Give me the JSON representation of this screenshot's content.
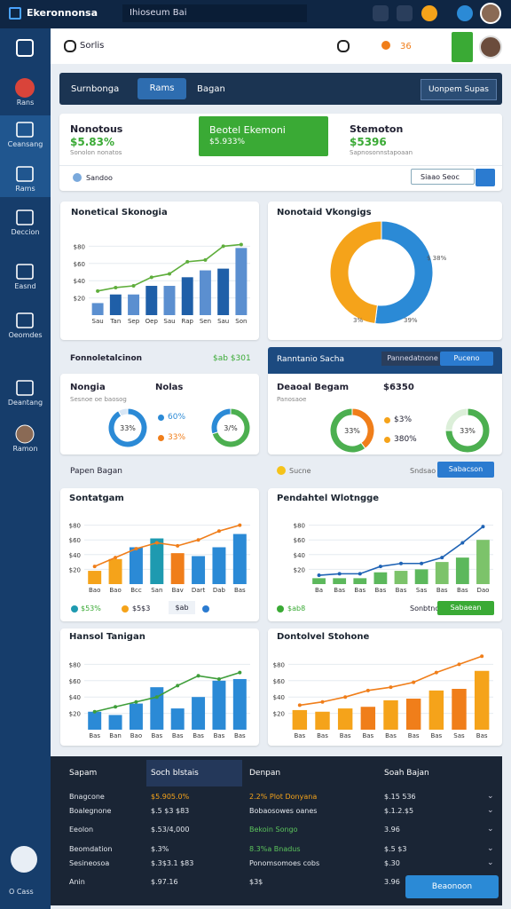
{
  "topbar": {
    "brand": "Ekeronnonsa",
    "search": "Ihioseum Bai"
  },
  "sidebar": [
    "Rans",
    "Ceansang",
    "Rams",
    "Deccion",
    "Easnd",
    "Oeomdes",
    "Deantang",
    "Ramon",
    "O Cass"
  ],
  "header": {
    "search": "Sorlis",
    "badge": "36"
  },
  "tabs": [
    "Surnbonga",
    "Rams",
    "Bagan"
  ],
  "tab_button": "Uonpem Supas",
  "summary": {
    "left_title": "Nonotous",
    "left_value": "$5.83%",
    "left_sub": "Sonolon nonatos",
    "center_title": "Beotel Ekemoni",
    "center_value": "$5.933%",
    "right_title": "Stemoton",
    "right_value": "$5396",
    "right_sub": "Sapnosonnstapoaan",
    "radio": "Sandoo",
    "input": "Siaao Seoc"
  },
  "section": {
    "left": "Fonnoletalcinon",
    "left_value": "$ab $301",
    "right": "Ranntanio Sacha",
    "right_pill": "Pannedatnone",
    "right_button": "Puceno"
  },
  "donut_cards": [
    {
      "title": "Nongia",
      "value": "Nolas",
      "sub": "Sesnoe oe baosog",
      "legend": [
        "60%",
        "33%"
      ]
    },
    {
      "title": "Deaoal Begam",
      "value": "$6350",
      "sub": "Panosaoe",
      "legend": [
        "$3%",
        "380%"
      ]
    }
  ],
  "row_strip": {
    "left": "Papen Bagan",
    "middle": "Sucne",
    "right": "Sndsao",
    "button": "Sabacson"
  },
  "legend_rows": [
    {
      "left": "$53%",
      "mid": "$5$3",
      "box": "$ab"
    },
    {
      "left": "$ab8",
      "right": "Sonbtnc",
      "button": "Sabaean"
    }
  ],
  "chart_data": [
    {
      "type": "bar",
      "title": "Nonetical Skonogia",
      "categories": [
        "Sau",
        "Tan",
        "Sep",
        "Oep",
        "Sau",
        "Rap",
        "Sen",
        "Sau",
        "Son"
      ],
      "ylim": [
        0,
        100
      ],
      "yticks": [
        {
          "value": 20,
          "label": "$20"
        },
        {
          "value": 40,
          "label": "$40"
        },
        {
          "value": 60,
          "label": "$60"
        },
        {
          "value": 80,
          "label": "$80"
        }
      ],
      "grid": true,
      "series": [
        {
          "style": "bar",
          "colors": [
            "#5b8fd0",
            "#1f5fa8",
            "#5b8fd0",
            "#1f5fa8",
            "#5b8fd0",
            "#1f5fa8",
            "#5b8fd0",
            "#1f5fa8",
            "#5b8fd0"
          ],
          "values": [
            14,
            24,
            24,
            34,
            34,
            44,
            52,
            54,
            78
          ]
        },
        {
          "style": "line",
          "color": "#5fae3c",
          "values": [
            28,
            32,
            34,
            44,
            48,
            62,
            64,
            80,
            82
          ]
        }
      ]
    },
    {
      "type": "pie",
      "title": "Nonotaid Vkongigs",
      "donut": true,
      "values": [
        52,
        48
      ],
      "colors": [
        "#2b8ad6",
        "#f5a31a"
      ],
      "annotations": [
        "$ 38%",
        "39%",
        "3%"
      ]
    },
    {
      "type": "pie",
      "donut": true,
      "values": [
        92,
        8
      ],
      "colors": [
        "#2b8ad6",
        "#d7e6f5"
      ],
      "center_label": "33%"
    },
    {
      "type": "pie",
      "donut": true,
      "values": [
        70,
        30
      ],
      "colors": [
        "#4caf50",
        "#2b8ad6"
      ],
      "center_label": "3/%"
    },
    {
      "type": "pie",
      "donut": true,
      "values": [
        40,
        60
      ],
      "colors": [
        "#f07e1a",
        "#4caf50"
      ],
      "center_label": "33%"
    },
    {
      "type": "pie",
      "donut": true,
      "values": [
        75,
        25
      ],
      "colors": [
        "#4caf50",
        "#dcefd9"
      ],
      "center_label": "33%"
    },
    {
      "type": "bar",
      "title": "Sontatgam",
      "categories": [
        "Bao",
        "Bao",
        "Bcc",
        "San",
        "Bav",
        "Dart",
        "Dab",
        "Bas"
      ],
      "ylim": [
        0,
        100
      ],
      "yticks": [
        {
          "value": 20,
          "label": "$20"
        },
        {
          "value": 40,
          "label": "$40"
        },
        {
          "value": 60,
          "label": "$60"
        },
        {
          "value": 80,
          "label": "$80"
        }
      ],
      "grid": true,
      "series": [
        {
          "style": "bar",
          "colors": [
            "#f5a31a",
            "#f5a31a",
            "#2b8ad6",
            "#1e9ab0",
            "#f07e1a",
            "#2b8ad6",
            "#2b8ad6",
            "#2b8ad6"
          ],
          "values": [
            18,
            34,
            50,
            62,
            42,
            38,
            50,
            68
          ]
        },
        {
          "style": "line",
          "color": "#f07e1a",
          "values": [
            24,
            36,
            48,
            56,
            52,
            60,
            72,
            80
          ]
        }
      ]
    },
    {
      "type": "bar",
      "title": "Pendahtel Wlotngge",
      "categories": [
        "Ba",
        "Bas",
        "Bas",
        "Bas",
        "Bas",
        "Sas",
        "Bas",
        "Bas",
        "Dao"
      ],
      "ylim": [
        0,
        100
      ],
      "yticks": [
        {
          "value": 20,
          "label": "$20"
        },
        {
          "value": 40,
          "label": "$40"
        },
        {
          "value": 60,
          "label": "$60"
        },
        {
          "value": 80,
          "label": "$80"
        }
      ],
      "grid": true,
      "series": [
        {
          "style": "bar",
          "colors": [
            "#5cb85c",
            "#5cb85c",
            "#5cb85c",
            "#5cb85c",
            "#7cc36a",
            "#5cb85c",
            "#7cc36a",
            "#5cb85c",
            "#7cc36a"
          ],
          "values": [
            8,
            8,
            8,
            16,
            18,
            20,
            30,
            36,
            60
          ]
        },
        {
          "style": "line",
          "color": "#1f63b5",
          "values": [
            12,
            14,
            14,
            24,
            28,
            28,
            36,
            56,
            78
          ]
        }
      ]
    },
    {
      "type": "bar",
      "title": "Hansol Tanigan",
      "categories": [
        "Bas",
        "Ban",
        "Bao",
        "Bas",
        "Bas",
        "Bas",
        "Bas",
        "Bas"
      ],
      "ylim": [
        0,
        100
      ],
      "yticks": [
        {
          "value": 20,
          "label": "$20"
        },
        {
          "value": 40,
          "label": "$40"
        },
        {
          "value": 60,
          "label": "$60"
        },
        {
          "value": 80,
          "label": "$80"
        }
      ],
      "grid": true,
      "series": [
        {
          "style": "bar",
          "colors": [
            "#2b8ad6",
            "#2b8ad6",
            "#2b8ad6",
            "#2b8ad6",
            "#2b8ad6",
            "#2b8ad6",
            "#2b8ad6",
            "#2b8ad6"
          ],
          "values": [
            22,
            18,
            32,
            52,
            26,
            40,
            60,
            62
          ]
        },
        {
          "style": "line",
          "color": "#3f9e3a",
          "values": [
            22,
            28,
            34,
            40,
            54,
            66,
            62,
            70
          ]
        }
      ]
    },
    {
      "type": "bar",
      "title": "Dontolvel Stohone",
      "categories": [
        "Bas",
        "Bas",
        "Bas",
        "Bas",
        "Bas",
        "Bas",
        "Bas",
        "Sas",
        "Bas"
      ],
      "ylim": [
        0,
        100
      ],
      "yticks": [
        {
          "value": 20,
          "label": "$20"
        },
        {
          "value": 40,
          "label": "$40"
        },
        {
          "value": 60,
          "label": "$60"
        },
        {
          "value": 80,
          "label": "$80"
        }
      ],
      "grid": true,
      "series": [
        {
          "style": "bar",
          "colors": [
            "#f5a31a",
            "#f5a31a",
            "#f5a31a",
            "#f07e1a",
            "#f5a31a",
            "#f07e1a",
            "#f5a31a",
            "#f07e1a",
            "#f5a31a"
          ],
          "values": [
            24,
            22,
            26,
            28,
            36,
            38,
            48,
            50,
            72
          ]
        },
        {
          "style": "line",
          "color": "#f07e1a",
          "values": [
            30,
            34,
            40,
            48,
            52,
            58,
            70,
            80,
            90
          ]
        }
      ]
    }
  ],
  "table": {
    "header": [
      "Sapam",
      "Soch blstais",
      "Denpan",
      "Soah Bajan"
    ],
    "rows": [
      [
        "Bnagcone",
        "$5.905.0%",
        "2.2% Plot Donyana",
        "$.15 536"
      ],
      [
        "Boalegnone",
        "$.5 $3 $83",
        "Bobaosowes oanes",
        "$.1.2.$5"
      ],
      [
        "Eeolon",
        "$.53/4,000",
        "Bekoin Songo",
        "3.96"
      ],
      [
        "Beomdation",
        "$.3%",
        "8.3%a Bnadus",
        "$.5 $3"
      ],
      [
        "Sesineosoa",
        "$.3$3.1 $83",
        "Ponomsomoes cobs",
        "$.30"
      ],
      [
        "Anin",
        "$.97.16",
        "$3$",
        "3.96"
      ]
    ],
    "button": "Beaonoon"
  }
}
